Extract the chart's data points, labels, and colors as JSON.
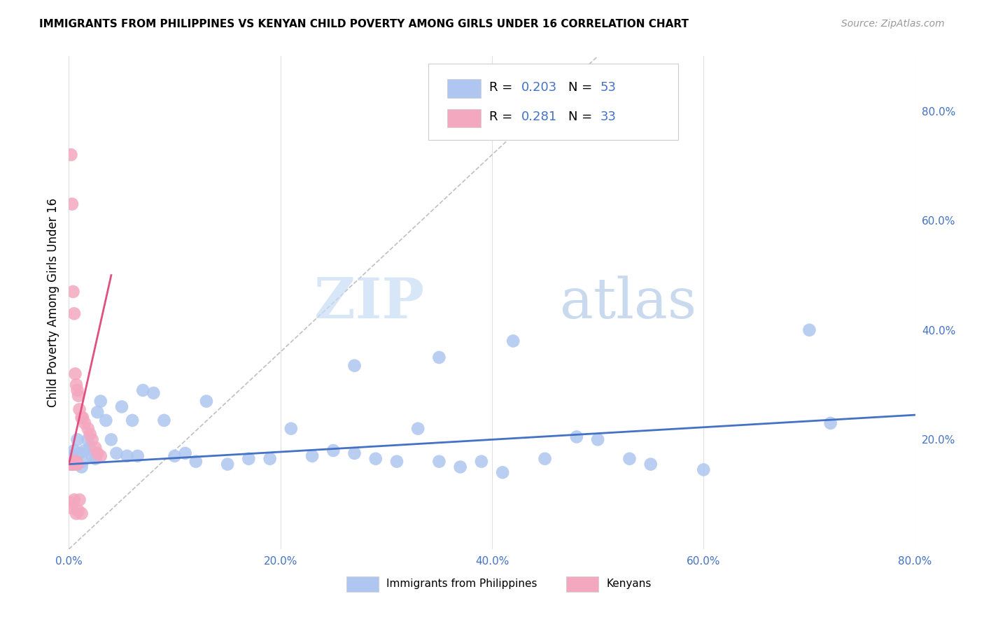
{
  "title": "IMMIGRANTS FROM PHILIPPINES VS KENYAN CHILD POVERTY AMONG GIRLS UNDER 16 CORRELATION CHART",
  "source": "Source: ZipAtlas.com",
  "ylabel": "Child Poverty Among Girls Under 16",
  "legend_label_1": "Immigrants from Philippines",
  "legend_label_2": "Kenyans",
  "R1": "0.203",
  "N1": "53",
  "R2": "0.281",
  "N2": "33",
  "color1": "#aec6f0",
  "color2": "#f4a8c0",
  "line_color1": "#4472c4",
  "line_color2": "#e05080",
  "background_color": "#ffffff",
  "grid_color": "#dddddd",
  "watermark_zip": "ZIP",
  "watermark_atlas": "atlas",
  "xlim": [
    0.0,
    0.8
  ],
  "ylim": [
    0.0,
    0.9
  ],
  "xticks": [
    0.0,
    0.2,
    0.4,
    0.6,
    0.8
  ],
  "yticks_right": [
    0.2,
    0.4,
    0.6,
    0.8
  ],
  "blue_points_x": [
    0.003,
    0.005,
    0.007,
    0.008,
    0.01,
    0.012,
    0.013,
    0.015,
    0.018,
    0.02,
    0.022,
    0.025,
    0.027,
    0.03,
    0.035,
    0.04,
    0.045,
    0.05,
    0.055,
    0.06,
    0.065,
    0.07,
    0.08,
    0.09,
    0.1,
    0.11,
    0.12,
    0.13,
    0.15,
    0.17,
    0.19,
    0.21,
    0.23,
    0.25,
    0.27,
    0.29,
    0.31,
    0.33,
    0.35,
    0.37,
    0.39,
    0.41,
    0.45,
    0.5,
    0.55,
    0.6,
    0.27,
    0.35,
    0.42,
    0.48,
    0.7,
    0.72,
    0.53
  ],
  "blue_points_y": [
    0.17,
    0.18,
    0.155,
    0.2,
    0.175,
    0.15,
    0.16,
    0.18,
    0.2,
    0.185,
    0.17,
    0.165,
    0.25,
    0.27,
    0.235,
    0.2,
    0.175,
    0.26,
    0.17,
    0.235,
    0.17,
    0.29,
    0.285,
    0.235,
    0.17,
    0.175,
    0.16,
    0.27,
    0.155,
    0.165,
    0.165,
    0.22,
    0.17,
    0.18,
    0.175,
    0.165,
    0.16,
    0.22,
    0.16,
    0.15,
    0.16,
    0.14,
    0.165,
    0.2,
    0.155,
    0.145,
    0.335,
    0.35,
    0.38,
    0.205,
    0.4,
    0.23,
    0.165
  ],
  "pink_points_x": [
    0.002,
    0.003,
    0.004,
    0.005,
    0.006,
    0.007,
    0.008,
    0.009,
    0.01,
    0.012,
    0.013,
    0.015,
    0.018,
    0.02,
    0.022,
    0.025,
    0.027,
    0.03,
    0.001,
    0.002,
    0.003,
    0.004,
    0.005,
    0.006,
    0.007,
    0.008,
    0.002,
    0.003,
    0.005,
    0.007,
    0.009,
    0.01,
    0.012
  ],
  "pink_points_y": [
    0.72,
    0.63,
    0.47,
    0.43,
    0.32,
    0.3,
    0.29,
    0.28,
    0.255,
    0.24,
    0.24,
    0.23,
    0.22,
    0.21,
    0.2,
    0.185,
    0.175,
    0.17,
    0.155,
    0.155,
    0.155,
    0.155,
    0.16,
    0.155,
    0.16,
    0.155,
    0.085,
    0.075,
    0.09,
    0.065,
    0.07,
    0.09,
    0.065
  ],
  "blue_line_x": [
    0.0,
    0.8
  ],
  "blue_line_y": [
    0.155,
    0.245
  ],
  "pink_line_x": [
    0.0,
    0.04
  ],
  "pink_line_y": [
    0.155,
    0.5
  ],
  "dashed_line_x": [
    0.0,
    0.5
  ],
  "dashed_line_y": [
    0.0,
    0.9
  ]
}
